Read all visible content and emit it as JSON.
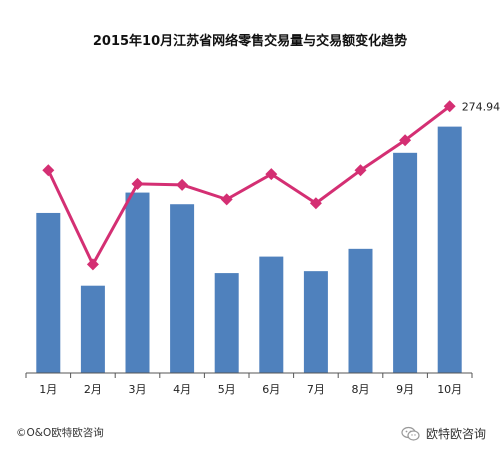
{
  "chart_data": {
    "type": "bar",
    "title": "2015年10月江苏省网络零售交易量与交易额变化趋势",
    "categories": [
      "1月",
      "2月",
      "3月",
      "4月",
      "5月",
      "6月",
      "7月",
      "8月",
      "9月",
      "10月"
    ],
    "series": [
      {
        "type": "bar",
        "values": [
          165,
          90,
          186,
          174,
          103,
          120,
          105,
          128,
          227,
          254
        ]
      },
      {
        "type": "line",
        "values": [
          209,
          112,
          195,
          194,
          179,
          205,
          175,
          209,
          240,
          274.94
        ]
      }
    ],
    "ylim": [
      0,
      300
    ],
    "grid": false,
    "last_value_label": "274.94",
    "colors": {
      "bar": "#4f81bd",
      "line": "#d42f73",
      "axis": "#555555"
    }
  },
  "footer": {
    "copyright": "©O&O欧特欧咨询",
    "brand": "欧特欧咨询",
    "brand_icon": "wechat-icon"
  }
}
